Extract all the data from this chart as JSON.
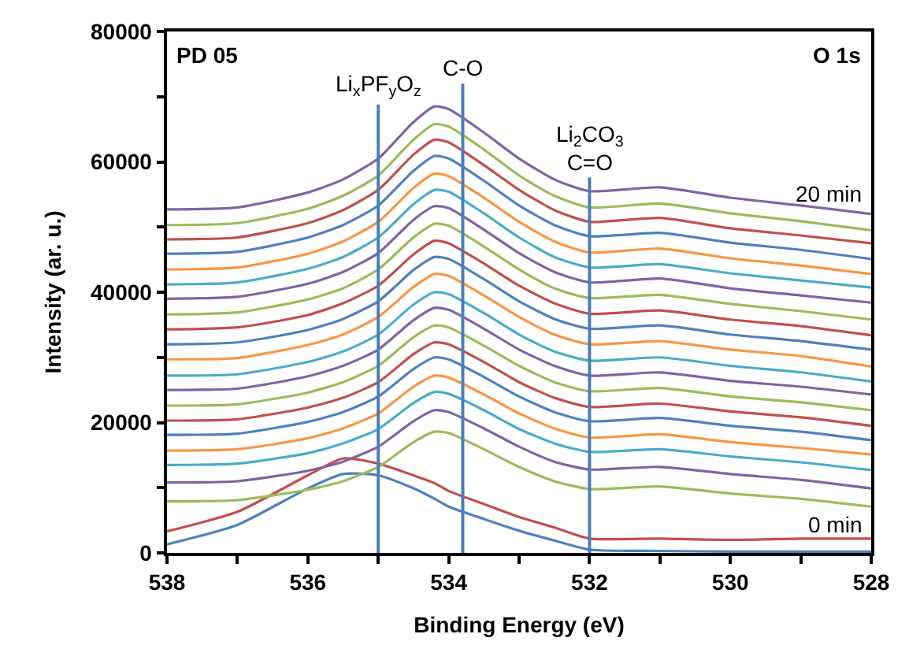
{
  "chart_data": {
    "type": "line",
    "xlabel": "Binding Energy (eV)",
    "ylabel": "Intensity (ar. u.)",
    "x": [
      538,
      537,
      536,
      535.5,
      535,
      534.5,
      534.2,
      534,
      533.5,
      533,
      532.5,
      532,
      531,
      530,
      529,
      528
    ],
    "xlim": [
      538,
      528
    ],
    "xticks": [
      538,
      {
        "value": 537,
        "label": null
      },
      536,
      {
        "value": 535,
        "label": null
      },
      534,
      {
        "value": 533,
        "label": null
      },
      532,
      {
        "value": 531,
        "label": null
      },
      530,
      {
        "value": 529,
        "label": null
      },
      528
    ],
    "ylim": [
      0,
      80000
    ],
    "yticks": [
      0,
      {
        "value": 10000,
        "label": null
      },
      20000,
      {
        "value": 30000,
        "label": null
      },
      40000,
      {
        "value": 50000,
        "label": null
      },
      60000,
      {
        "value": 70000,
        "label": null
      },
      80000
    ],
    "marker": "none",
    "line_style": "solid",
    "series": [
      {
        "color": "#4f81bd",
        "values": [
          1300,
          4300,
          9900,
          12100,
          11900,
          9900,
          8300,
          7100,
          5200,
          3400,
          1900,
          500,
          300,
          200,
          200,
          200
        ]
      },
      {
        "color": "#c0504d",
        "values": [
          3300,
          6300,
          11900,
          14500,
          13700,
          11900,
          10700,
          9500,
          7500,
          5500,
          3900,
          2200,
          2200,
          2000,
          2200,
          2200
        ]
      },
      {
        "color": "#9bbb59",
        "values": [
          7900,
          8100,
          9700,
          11000,
          13200,
          17000,
          18600,
          18400,
          15900,
          13200,
          11000,
          9800,
          10200,
          9100,
          8300,
          7100
        ]
      },
      {
        "color": "#8064a2",
        "values": [
          10800,
          11000,
          12600,
          14000,
          16300,
          20200,
          21900,
          21600,
          19100,
          16300,
          14000,
          12800,
          13200,
          12100,
          11200,
          9900
        ]
      },
      {
        "color": "#4bacc6",
        "values": [
          13500,
          13700,
          15300,
          16800,
          19000,
          23000,
          24700,
          24400,
          21900,
          19000,
          16800,
          15500,
          15900,
          14800,
          13900,
          12700
        ]
      },
      {
        "color": "#f79646",
        "values": [
          15700,
          15900,
          17600,
          19100,
          21400,
          25500,
          27200,
          26900,
          24300,
          21400,
          19100,
          17700,
          18200,
          17000,
          16100,
          15100
        ]
      },
      {
        "color": "#4f81bd",
        "values": [
          18100,
          18300,
          20100,
          21600,
          24000,
          28200,
          30000,
          29700,
          27000,
          24000,
          21600,
          20200,
          20700,
          19500,
          18600,
          17300
        ]
      },
      {
        "color": "#c0504d",
        "values": [
          20300,
          20500,
          22300,
          23800,
          26200,
          30500,
          32300,
          32000,
          29300,
          26200,
          23800,
          22400,
          22900,
          21700,
          20800,
          19500
        ]
      },
      {
        "color": "#9bbb59",
        "values": [
          22600,
          22800,
          24600,
          26200,
          28700,
          33100,
          34900,
          34600,
          31800,
          28700,
          26200,
          24800,
          25300,
          24000,
          23100,
          21900
        ]
      },
      {
        "color": "#8064a2",
        "values": [
          25000,
          25200,
          27100,
          28700,
          31200,
          35700,
          37600,
          37300,
          34400,
          31200,
          28700,
          27200,
          27700,
          26400,
          25500,
          24300
        ]
      },
      {
        "color": "#4bacc6",
        "values": [
          27200,
          27400,
          29300,
          30900,
          33500,
          38100,
          40000,
          39700,
          36800,
          33500,
          30900,
          29500,
          30000,
          28700,
          27700,
          26300
        ]
      },
      {
        "color": "#f79646",
        "values": [
          29700,
          29900,
          31900,
          33500,
          36200,
          40800,
          42800,
          42500,
          39500,
          36200,
          33500,
          32000,
          32500,
          31200,
          30200,
          28600
        ]
      },
      {
        "color": "#4f81bd",
        "values": [
          32000,
          32300,
          34200,
          35900,
          38600,
          43400,
          45400,
          45100,
          42000,
          38600,
          35900,
          34400,
          34900,
          33500,
          32500,
          31200
        ]
      },
      {
        "color": "#c0504d",
        "values": [
          34300,
          34600,
          36500,
          38300,
          41000,
          45800,
          47900,
          47500,
          44400,
          41000,
          38300,
          36700,
          37200,
          35800,
          34800,
          33400
        ]
      },
      {
        "color": "#9bbb59",
        "values": [
          36600,
          36900,
          38900,
          40600,
          43500,
          48400,
          50500,
          50200,
          47000,
          43500,
          40600,
          39100,
          39600,
          38200,
          37100,
          35800
        ]
      },
      {
        "color": "#8064a2",
        "values": [
          39000,
          39300,
          41300,
          43100,
          46000,
          51100,
          53200,
          52900,
          49600,
          46000,
          43100,
          41500,
          42100,
          40600,
          39500,
          38400
        ]
      },
      {
        "color": "#4bacc6",
        "values": [
          41200,
          41500,
          43600,
          45400,
          48400,
          53500,
          55700,
          55400,
          52100,
          48400,
          45400,
          43800,
          44300,
          42900,
          41800,
          40700
        ]
      },
      {
        "color": "#f79646",
        "values": [
          43500,
          43800,
          45900,
          47800,
          50800,
          56000,
          58200,
          57800,
          54500,
          50800,
          47800,
          46100,
          46700,
          45200,
          44100,
          42800
        ]
      },
      {
        "color": "#4f81bd",
        "values": [
          45900,
          46200,
          48400,
          50300,
          53300,
          58600,
          60900,
          60500,
          57100,
          53300,
          50300,
          48600,
          49100,
          47600,
          46500,
          45100
        ]
      },
      {
        "color": "#c0504d",
        "values": [
          48100,
          48400,
          50600,
          52600,
          55700,
          61100,
          63400,
          63000,
          59500,
          55700,
          52600,
          50800,
          51400,
          49800,
          48700,
          47500
        ]
      },
      {
        "color": "#9bbb59",
        "values": [
          50300,
          50600,
          52800,
          54800,
          57900,
          63400,
          65800,
          65400,
          61900,
          57900,
          54800,
          53000,
          53600,
          52100,
          50900,
          49500
        ]
      },
      {
        "color": "#8064a2",
        "values": [
          52700,
          53000,
          55300,
          57300,
          60500,
          66100,
          68500,
          68100,
          64500,
          60500,
          57300,
          55500,
          56100,
          54500,
          53300,
          52000
        ]
      }
    ],
    "ref_lines": [
      {
        "axis": "x",
        "value": 535,
        "label": "Li$_{x}$PF$_{y}$O$_{z}$",
        "color": "#4a7ebb"
      },
      {
        "axis": "x",
        "value": 533.8,
        "label": "C-O",
        "color": "#4a7ebb"
      },
      {
        "axis": "x",
        "value": 532,
        "label": "Li$_{2}$CO$_{3}$\nC=O",
        "color": "#4a7ebb"
      }
    ],
    "annotations": [
      "PD 05",
      "O 1s",
      "20 min",
      "0 min"
    ]
  }
}
